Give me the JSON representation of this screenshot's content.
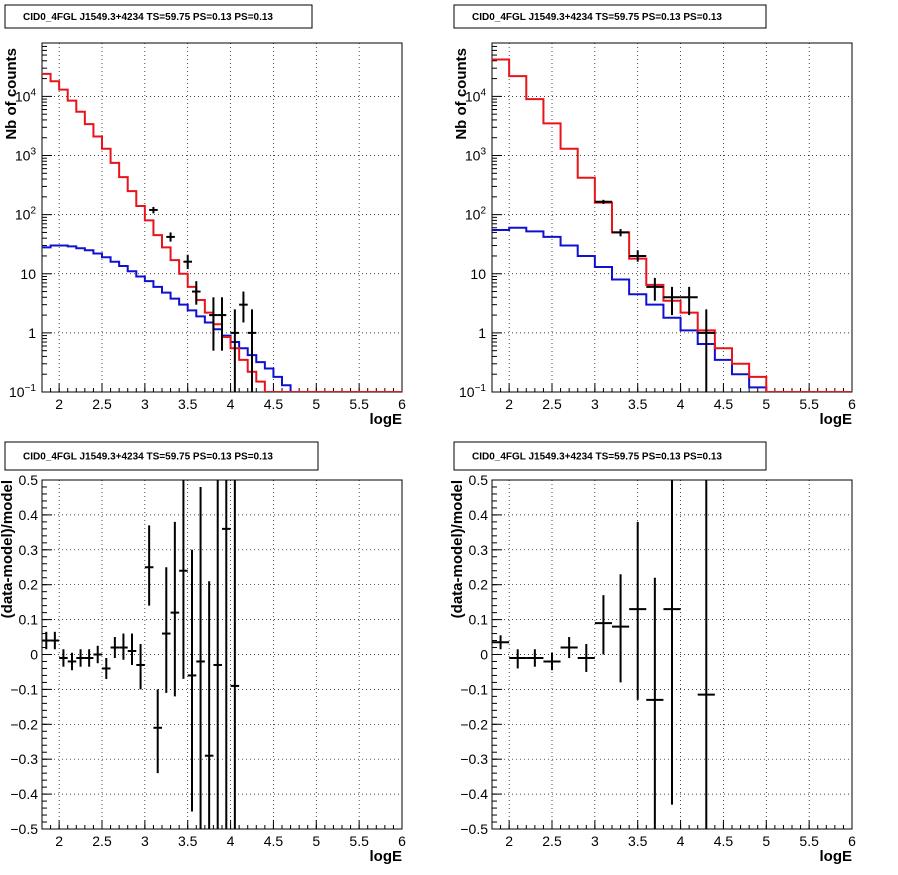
{
  "chart_data": [
    {
      "type": "step-histogram",
      "title": "CID0_4FGL J1549.3+4234 TS=59.75 PS=0.13 PS=0.13",
      "xlabel": "logE",
      "ylabel": "Nb of counts",
      "yscale": "log",
      "xlim": [
        1.8,
        6
      ],
      "ylim": [
        0.1,
        80000
      ],
      "x_ticks": [
        "2",
        "2.5",
        "3",
        "3.5",
        "4",
        "4.5",
        "5",
        "5.5",
        "6"
      ],
      "y_ticks": [
        "10^-1",
        "1",
        "10",
        "10^2",
        "10^3",
        "10^4"
      ],
      "grid": true,
      "bin_edges": [
        1.8,
        1.9,
        2.0,
        2.1,
        2.2,
        2.3,
        2.4,
        2.5,
        2.6,
        2.7,
        2.8,
        2.9,
        3.0,
        3.1,
        3.2,
        3.3,
        3.4,
        3.5,
        3.6,
        3.7,
        3.8,
        3.9,
        4.0,
        4.1,
        4.2,
        4.3,
        4.4,
        4.5,
        4.6,
        4.7,
        4.8,
        4.9,
        5.0,
        5.1,
        5.2,
        5.3,
        5.4,
        5.5,
        5.6,
        5.7,
        5.8,
        5.9,
        6.0
      ],
      "series": [
        {
          "color": "#e8141c",
          "values": [
            24000,
            18000,
            13000,
            8500,
            5500,
            3400,
            2100,
            1300,
            750,
            430,
            250,
            140,
            80,
            45,
            28,
            17,
            10,
            6,
            3.6,
            2.2,
            1.4,
            0.85,
            0.55,
            0.35,
            0.22,
            0.15,
            0.1,
            0.1,
            0.1,
            0.1,
            0.1,
            0.1,
            0.1,
            0.1,
            0.1,
            0.1,
            0.1,
            0.1,
            0.1,
            0.1,
            0.1,
            0.1
          ]
        },
        {
          "color": "#1010d0",
          "values": [
            28,
            30,
            30,
            29,
            27,
            25,
            22,
            19,
            16,
            13.5,
            11,
            9,
            7.5,
            6,
            4.8,
            3.8,
            3,
            2.4,
            1.9,
            1.5,
            1.15,
            0.9,
            0.7,
            0.55,
            0.42,
            0.32,
            0.25,
            0.18,
            0.13,
            0.1,
            0.1,
            0.1,
            0.1,
            0.1,
            0.1,
            0.1,
            0.1,
            0.1,
            0.1,
            0.1,
            0.1,
            0.1
          ]
        }
      ],
      "points": [
        {
          "x": 3.1,
          "y": 120,
          "ylo": 105,
          "yhi": 135,
          "xerr": 0.05
        },
        {
          "x": 3.3,
          "y": 42,
          "ylo": 35,
          "yhi": 50,
          "xerr": 0.05
        },
        {
          "x": 3.5,
          "y": 16,
          "ylo": 12,
          "yhi": 21,
          "xerr": 0.05
        },
        {
          "x": 3.6,
          "y": 5,
          "ylo": 3,
          "yhi": 7.5,
          "xerr": 0.05
        },
        {
          "x": 3.8,
          "y": 2,
          "ylo": 0.5,
          "yhi": 4,
          "xerr": 0.05
        },
        {
          "x": 3.9,
          "y": 2,
          "ylo": 0.5,
          "yhi": 4,
          "xerr": 0.05
        },
        {
          "x": 4.05,
          "y": 1,
          "ylo": 0.1,
          "yhi": 2.5,
          "xerr": 0.05
        },
        {
          "x": 4.15,
          "y": 3,
          "ylo": 1.5,
          "yhi": 5,
          "xerr": 0.05
        },
        {
          "x": 4.25,
          "y": 1,
          "ylo": 0.1,
          "yhi": 2.5,
          "xerr": 0.05
        }
      ]
    },
    {
      "type": "step-histogram",
      "title": "CID0_4FGL J1549.3+4234 TS=59.75 PS=0.13 PS=0.13",
      "xlabel": "logE",
      "ylabel": "Nb of counts",
      "yscale": "log",
      "xlim": [
        1.8,
        6
      ],
      "ylim": [
        0.1,
        80000
      ],
      "x_ticks": [
        "2",
        "2.5",
        "3",
        "3.5",
        "4",
        "4.5",
        "5",
        "5.5",
        "6"
      ],
      "y_ticks": [
        "10^-1",
        "1",
        "10",
        "10^2",
        "10^3",
        "10^4"
      ],
      "grid": true,
      "bin_edges": [
        1.8,
        2.0,
        2.2,
        2.4,
        2.6,
        2.8,
        3.0,
        3.2,
        3.4,
        3.6,
        3.8,
        4.0,
        4.2,
        4.4,
        4.6,
        4.8,
        5.0,
        5.2,
        5.4,
        5.6,
        5.8,
        6.0
      ],
      "series": [
        {
          "color": "#e8141c",
          "values": [
            42000,
            22000,
            9000,
            3500,
            1300,
            420,
            160,
            50,
            18,
            6.5,
            3.5,
            2.2,
            1.1,
            0.55,
            0.3,
            0.18,
            0.1,
            0.1,
            0.1,
            0.1,
            0.1
          ]
        },
        {
          "color": "#1010d0",
          "values": [
            55,
            60,
            52,
            42,
            30,
            20,
            13,
            8,
            4.5,
            3,
            1.8,
            1.1,
            0.65,
            0.35,
            0.2,
            0.12,
            0.1,
            0.1,
            0.1,
            0.1,
            0.1
          ]
        }
      ],
      "points": [
        {
          "x": 3.1,
          "y": 165,
          "ylo": 152,
          "yhi": 178,
          "xerr": 0.1
        },
        {
          "x": 3.3,
          "y": 50,
          "ylo": 43,
          "yhi": 57,
          "xerr": 0.1
        },
        {
          "x": 3.5,
          "y": 20,
          "ylo": 16,
          "yhi": 25,
          "xerr": 0.1
        },
        {
          "x": 3.7,
          "y": 6,
          "ylo": 3.5,
          "yhi": 8.5,
          "xerr": 0.1
        },
        {
          "x": 3.9,
          "y": 4,
          "ylo": 2,
          "yhi": 6,
          "xerr": 0.1
        },
        {
          "x": 4.1,
          "y": 4,
          "ylo": 2,
          "yhi": 6,
          "xerr": 0.1
        },
        {
          "x": 4.3,
          "y": 1,
          "ylo": 0.1,
          "yhi": 2.5,
          "xerr": 0.1
        }
      ]
    },
    {
      "type": "scatter-errorbars",
      "title": "CID0_4FGL J1549.3+4234 TS=59.75 PS=0.13 PS=0.13",
      "xlabel": "logE",
      "ylabel": "(data-model)/model",
      "xlim": [
        1.8,
        6
      ],
      "ylim": [
        -0.5,
        0.5
      ],
      "x_ticks": [
        "2",
        "2.5",
        "3",
        "3.5",
        "4",
        "4.5",
        "5",
        "5.5",
        "6"
      ],
      "y_ticks": [
        "-0.5",
        "-0.4",
        "-0.3",
        "-0.2",
        "-0.1",
        "0",
        "0.1",
        "0.2",
        "0.3",
        "0.4",
        "0.5"
      ],
      "grid": true,
      "points": [
        {
          "x": 1.85,
          "y": 0.04,
          "ylo": 0.015,
          "yhi": 0.065,
          "xerr": 0.05
        },
        {
          "x": 1.95,
          "y": 0.04,
          "ylo": 0.015,
          "yhi": 0.065,
          "xerr": 0.05
        },
        {
          "x": 2.05,
          "y": -0.01,
          "ylo": -0.035,
          "yhi": 0.015,
          "xerr": 0.05
        },
        {
          "x": 2.15,
          "y": -0.02,
          "ylo": -0.045,
          "yhi": 0.005,
          "xerr": 0.05
        },
        {
          "x": 2.25,
          "y": -0.01,
          "ylo": -0.035,
          "yhi": 0.015,
          "xerr": 0.05
        },
        {
          "x": 2.35,
          "y": -0.01,
          "ylo": -0.035,
          "yhi": 0.015,
          "xerr": 0.05
        },
        {
          "x": 2.45,
          "y": 0.0,
          "ylo": -0.025,
          "yhi": 0.025,
          "xerr": 0.05
        },
        {
          "x": 2.55,
          "y": -0.04,
          "ylo": -0.07,
          "yhi": -0.01,
          "xerr": 0.05
        },
        {
          "x": 2.65,
          "y": 0.02,
          "ylo": -0.01,
          "yhi": 0.05,
          "xerr": 0.05
        },
        {
          "x": 2.75,
          "y": 0.02,
          "ylo": -0.015,
          "yhi": 0.06,
          "xerr": 0.05
        },
        {
          "x": 2.85,
          "y": 0.01,
          "ylo": -0.03,
          "yhi": 0.06,
          "xerr": 0.05
        },
        {
          "x": 2.95,
          "y": -0.03,
          "ylo": -0.1,
          "yhi": 0.03,
          "xerr": 0.05
        },
        {
          "x": 3.05,
          "y": 0.25,
          "ylo": 0.14,
          "yhi": 0.37,
          "xerr": 0.05
        },
        {
          "x": 3.15,
          "y": -0.21,
          "ylo": -0.34,
          "yhi": -0.1,
          "xerr": 0.05
        },
        {
          "x": 3.25,
          "y": 0.06,
          "ylo": -0.11,
          "yhi": 0.25,
          "xerr": 0.05
        },
        {
          "x": 3.35,
          "y": 0.12,
          "ylo": -0.12,
          "yhi": 0.38,
          "xerr": 0.05
        },
        {
          "x": 3.45,
          "y": 0.24,
          "ylo": -0.07,
          "yhi": 0.5,
          "xerr": 0.05
        },
        {
          "x": 3.55,
          "y": -0.06,
          "ylo": -0.45,
          "yhi": 0.3,
          "xerr": 0.05
        },
        {
          "x": 3.65,
          "y": -0.02,
          "ylo": -0.5,
          "yhi": 0.48,
          "xerr": 0.05
        },
        {
          "x": 3.75,
          "y": -0.29,
          "ylo": -0.5,
          "yhi": 0.21,
          "xerr": 0.05
        },
        {
          "x": 3.85,
          "y": -0.03,
          "ylo": -0.5,
          "yhi": 0.5,
          "xerr": 0.05
        },
        {
          "x": 3.95,
          "y": 0.36,
          "ylo": -0.5,
          "yhi": 0.5,
          "xerr": 0.05
        },
        {
          "x": 4.05,
          "y": -0.09,
          "ylo": -0.5,
          "yhi": 0.5,
          "xerr": 0.05
        }
      ]
    },
    {
      "type": "scatter-errorbars",
      "title": "CID0_4FGL J1549.3+4234 TS=59.75 PS=0.13 PS=0.13",
      "xlabel": "logE",
      "ylabel": "(data-model)/model",
      "xlim": [
        1.8,
        6
      ],
      "ylim": [
        -0.5,
        0.5
      ],
      "x_ticks": [
        "2",
        "2.5",
        "3",
        "3.5",
        "4",
        "4.5",
        "5",
        "5.5",
        "6"
      ],
      "y_ticks": [
        "-0.5",
        "-0.4",
        "-0.3",
        "-0.2",
        "-0.1",
        "0",
        "0.1",
        "0.2",
        "0.3",
        "0.4",
        "0.5"
      ],
      "grid": true,
      "points": [
        {
          "x": 1.9,
          "y": 0.035,
          "ylo": 0.015,
          "yhi": 0.055,
          "xerr": 0.1
        },
        {
          "x": 2.1,
          "y": -0.01,
          "ylo": -0.04,
          "yhi": 0.015,
          "xerr": 0.1
        },
        {
          "x": 2.3,
          "y": -0.01,
          "ylo": -0.035,
          "yhi": 0.015,
          "xerr": 0.1
        },
        {
          "x": 2.5,
          "y": -0.02,
          "ylo": -0.045,
          "yhi": 0.005,
          "xerr": 0.1
        },
        {
          "x": 2.7,
          "y": 0.02,
          "ylo": -0.01,
          "yhi": 0.05,
          "xerr": 0.1
        },
        {
          "x": 2.9,
          "y": -0.01,
          "ylo": -0.05,
          "yhi": 0.03,
          "xerr": 0.1
        },
        {
          "x": 3.1,
          "y": 0.09,
          "ylo": 0.0,
          "yhi": 0.17,
          "xerr": 0.1
        },
        {
          "x": 3.3,
          "y": 0.08,
          "ylo": -0.08,
          "yhi": 0.23,
          "xerr": 0.1
        },
        {
          "x": 3.5,
          "y": 0.13,
          "ylo": -0.13,
          "yhi": 0.38,
          "xerr": 0.1
        },
        {
          "x": 3.7,
          "y": -0.13,
          "ylo": -0.5,
          "yhi": 0.22,
          "xerr": 0.1
        },
        {
          "x": 3.9,
          "y": 0.13,
          "ylo": -0.43,
          "yhi": 0.5,
          "xerr": 0.1
        },
        {
          "x": 4.3,
          "y": -0.115,
          "ylo": -0.5,
          "yhi": 0.5,
          "xerr": 0.1
        }
      ]
    }
  ]
}
